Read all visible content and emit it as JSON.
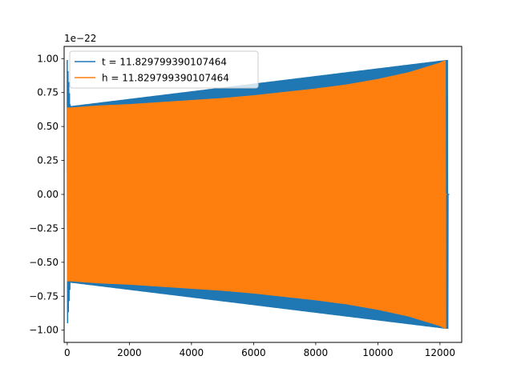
{
  "chart_data": {
    "type": "line",
    "title": "",
    "xlabel": "",
    "ylabel": "",
    "xlim": [
      -100,
      12700
    ],
    "ylim": [
      -1.09e-22,
      1.09e-22
    ],
    "y_offset_label": "1e−22",
    "x_ticks": [
      0,
      2000,
      4000,
      6000,
      8000,
      10000,
      12000
    ],
    "x_tick_labels": [
      "0",
      "2000",
      "4000",
      "6000",
      "8000",
      "10000",
      "12000"
    ],
    "y_ticks": [
      -1.0,
      -0.75,
      -0.5,
      -0.25,
      0.0,
      0.25,
      0.5,
      0.75,
      1.0
    ],
    "y_tick_labels": [
      "−1.00",
      "−0.75",
      "−0.50",
      "−0.25",
      "0.00",
      "0.25",
      "0.50",
      "0.75",
      "1.00"
    ],
    "grid": false,
    "legend_position": "top-left",
    "series": [
      {
        "name": "t = 11.829799390107464",
        "color": "#1f77b4",
        "envelope_x": [
          0,
          100,
          12200,
          12260
        ],
        "envelope_upper": [
          0.99,
          0.65,
          0.99,
          0.99
        ],
        "envelope_lower": [
          -0.99,
          -0.65,
          -0.99,
          -0.99
        ],
        "end_x": 12260,
        "end_value": 0.0
      },
      {
        "name": "h = 11.829799390107464",
        "color": "#ff7f0e",
        "envelope_x": [
          0,
          100,
          1000,
          2000,
          3000,
          4000,
          5000,
          6000,
          7000,
          8000,
          9000,
          10000,
          11000,
          12000,
          12180
        ],
        "envelope_upper": [
          0.64,
          0.64,
          0.655,
          0.665,
          0.68,
          0.695,
          0.71,
          0.73,
          0.755,
          0.78,
          0.81,
          0.85,
          0.9,
          0.97,
          0.99
        ],
        "envelope_lower": [
          -0.64,
          -0.64,
          -0.655,
          -0.665,
          -0.68,
          -0.695,
          -0.71,
          -0.73,
          -0.755,
          -0.78,
          -0.81,
          -0.85,
          -0.9,
          -0.97,
          -0.99
        ],
        "end_x": 12180,
        "end_value": 0.0
      }
    ]
  }
}
